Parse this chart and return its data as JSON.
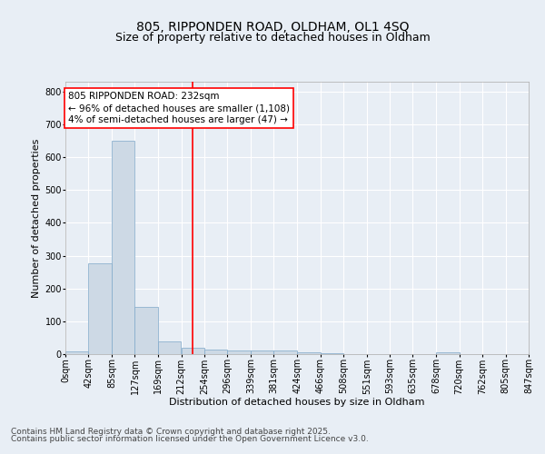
{
  "title1": "805, RIPPONDEN ROAD, OLDHAM, OL1 4SQ",
  "title2": "Size of property relative to detached houses in Oldham",
  "xlabel": "Distribution of detached houses by size in Oldham",
  "ylabel": "Number of detached properties",
  "bar_color": "#cdd9e5",
  "bar_edge_color": "#7fa8c9",
  "vline_color": "red",
  "vline_x": 232,
  "bins": [
    0,
    42,
    85,
    127,
    169,
    212,
    254,
    296,
    339,
    381,
    424,
    466,
    508,
    551,
    593,
    635,
    678,
    720,
    762,
    805,
    847
  ],
  "bin_labels": [
    "0sqm",
    "42sqm",
    "85sqm",
    "127sqm",
    "169sqm",
    "212sqm",
    "254sqm",
    "296sqm",
    "339sqm",
    "381sqm",
    "424sqm",
    "466sqm",
    "508sqm",
    "551sqm",
    "593sqm",
    "635sqm",
    "678sqm",
    "720sqm",
    "762sqm",
    "805sqm",
    "847sqm"
  ],
  "values": [
    7,
    278,
    650,
    143,
    38,
    20,
    13,
    10,
    10,
    10,
    5,
    2,
    1,
    0,
    0,
    0,
    5,
    0,
    0,
    1
  ],
  "ylim": [
    0,
    830
  ],
  "yticks": [
    0,
    100,
    200,
    300,
    400,
    500,
    600,
    700,
    800
  ],
  "annotation_line1": "805 RIPPONDEN ROAD: 232sqm",
  "annotation_line2": "← 96% of detached houses are smaller (1,108)",
  "annotation_line3": "4% of semi-detached houses are larger (47) →",
  "annotation_box_color": "white",
  "annotation_border_color": "red",
  "footer1": "Contains HM Land Registry data © Crown copyright and database right 2025.",
  "footer2": "Contains public sector information licensed under the Open Government Licence v3.0.",
  "background_color": "#e8eef5",
  "plot_bg_color": "#e8eef5",
  "title_fontsize": 10,
  "subtitle_fontsize": 9,
  "axis_label_fontsize": 8,
  "tick_fontsize": 7,
  "annotation_fontsize": 7.5,
  "footer_fontsize": 6.5
}
